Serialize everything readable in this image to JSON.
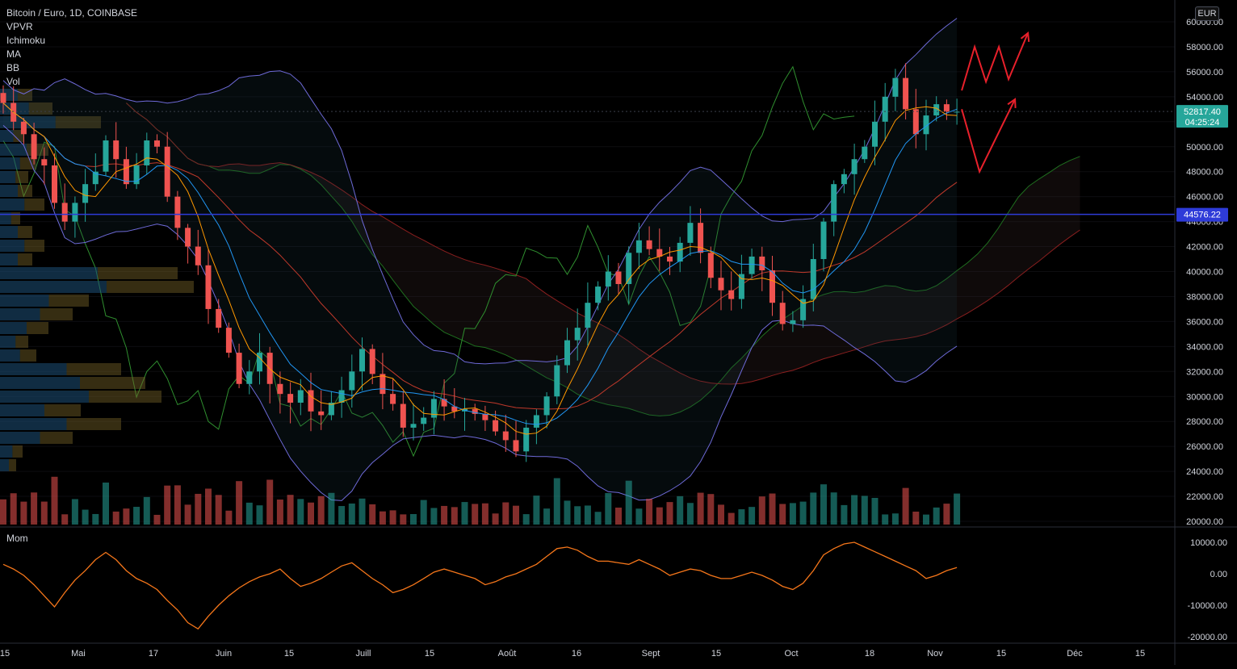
{
  "header": {
    "title": "Bitcoin / Euro, 1D, COINBASE",
    "indicators": [
      "VPVR",
      "Ichimoku",
      "MA",
      "BB",
      "Vol"
    ],
    "currency": "EUR"
  },
  "price_badges": {
    "last_price": "52817.40",
    "countdown": "04:25:24",
    "level_line": "44576.22"
  },
  "colors": {
    "up": "#26a69a",
    "down": "#ef5350",
    "level_line": "#2e3bd8",
    "annotation": "#e8202b",
    "momentum": "#f5761a",
    "bollinger": "#6e6ad8",
    "ichimoku_lagging": "#2f8f2f",
    "ichimoku_base": "#8b1f1f"
  },
  "chart_data": [
    {
      "type": "line",
      "subtype": "candlestick",
      "ylim": [
        20000,
        60000
      ],
      "y_ticks": [
        "60000.00",
        "58000.00",
        "56000.00",
        "54000.00",
        "52000.00",
        "50000.00",
        "48000.00",
        "46000.00",
        "44000.00",
        "42000.00",
        "40000.00",
        "38000.00",
        "36000.00",
        "34000.00",
        "32000.00",
        "30000.00",
        "28000.00",
        "26000.00",
        "24000.00",
        "22000.00",
        "20000.00"
      ],
      "x_ticks": [
        "15",
        "Mai",
        "17",
        "Juin",
        "15",
        "Juill",
        "15",
        "Août",
        "16",
        "Sept",
        "15",
        "Oct",
        "18",
        "Nov",
        "15",
        "Déc",
        "15"
      ],
      "horizontal_line": 44576.22,
      "last_price": 52817.4,
      "series": [
        {
          "name": "Close",
          "values": [
            53500,
            52000,
            51000,
            49000,
            48500,
            45500,
            44000,
            45500,
            47000,
            48000,
            50500,
            49000,
            47000,
            48500,
            50500,
            50000,
            46000,
            43500,
            42000,
            40500,
            37000,
            35500,
            33500,
            31000,
            32000,
            33500,
            31000,
            30200,
            29500,
            30500,
            28800,
            28500,
            29500,
            30500,
            32000,
            33800,
            31800,
            30200,
            29400,
            27500,
            27800,
            28300,
            29800,
            29200,
            28800,
            29000,
            28600,
            28100,
            27200,
            26500,
            25600,
            27500,
            28500,
            30000,
            32500,
            34500,
            35500,
            37500,
            38800,
            40000,
            39000,
            41500,
            42500,
            41800,
            41200,
            40800,
            42300,
            43900,
            41500,
            39500,
            38500,
            37800,
            39800,
            41200,
            40100,
            37500,
            35800,
            36100,
            37800,
            41000,
            44000,
            47000,
            47800,
            49000,
            50000,
            52000,
            54000,
            55500,
            53000,
            51000,
            52500,
            53400,
            52800,
            52800
          ]
        }
      ]
    },
    {
      "type": "line",
      "ylim": [
        -20000,
        10000
      ],
      "y_ticks": [
        "10000.00",
        "0.00",
        "-10000.00",
        "-20000.00"
      ],
      "series": [
        {
          "name": "Mom",
          "values": [
            3000,
            1500,
            -500,
            -3500,
            -7000,
            -10500,
            -6000,
            -2000,
            1000,
            4500,
            6800,
            4500,
            1000,
            -1500,
            -3000,
            -5000,
            -8500,
            -11500,
            -15500,
            -17500,
            -13500,
            -10000,
            -7000,
            -4500,
            -2500,
            -1000,
            0,
            1500,
            -1500,
            -4000,
            -3000,
            -1500,
            500,
            2500,
            3500,
            1000,
            -1500,
            -3500,
            -6000,
            -5000,
            -3500,
            -1500,
            500,
            1500,
            500,
            -500,
            -1500,
            -3500,
            -2500,
            -1000,
            0,
            1500,
            3000,
            5500,
            8000,
            8500,
            7500,
            5500,
            4000,
            4000,
            3500,
            3000,
            4500,
            3000,
            1500,
            -500,
            500,
            1500,
            1000,
            -500,
            -1500,
            -1500,
            -500,
            500,
            -500,
            -2000,
            -4000,
            -5000,
            -3000,
            1000,
            6000,
            8000,
            9500,
            10000,
            8500,
            7000,
            5500,
            4000,
            2500,
            1000,
            -1500,
            -500,
            1000,
            2000
          ]
        }
      ]
    }
  ]
}
